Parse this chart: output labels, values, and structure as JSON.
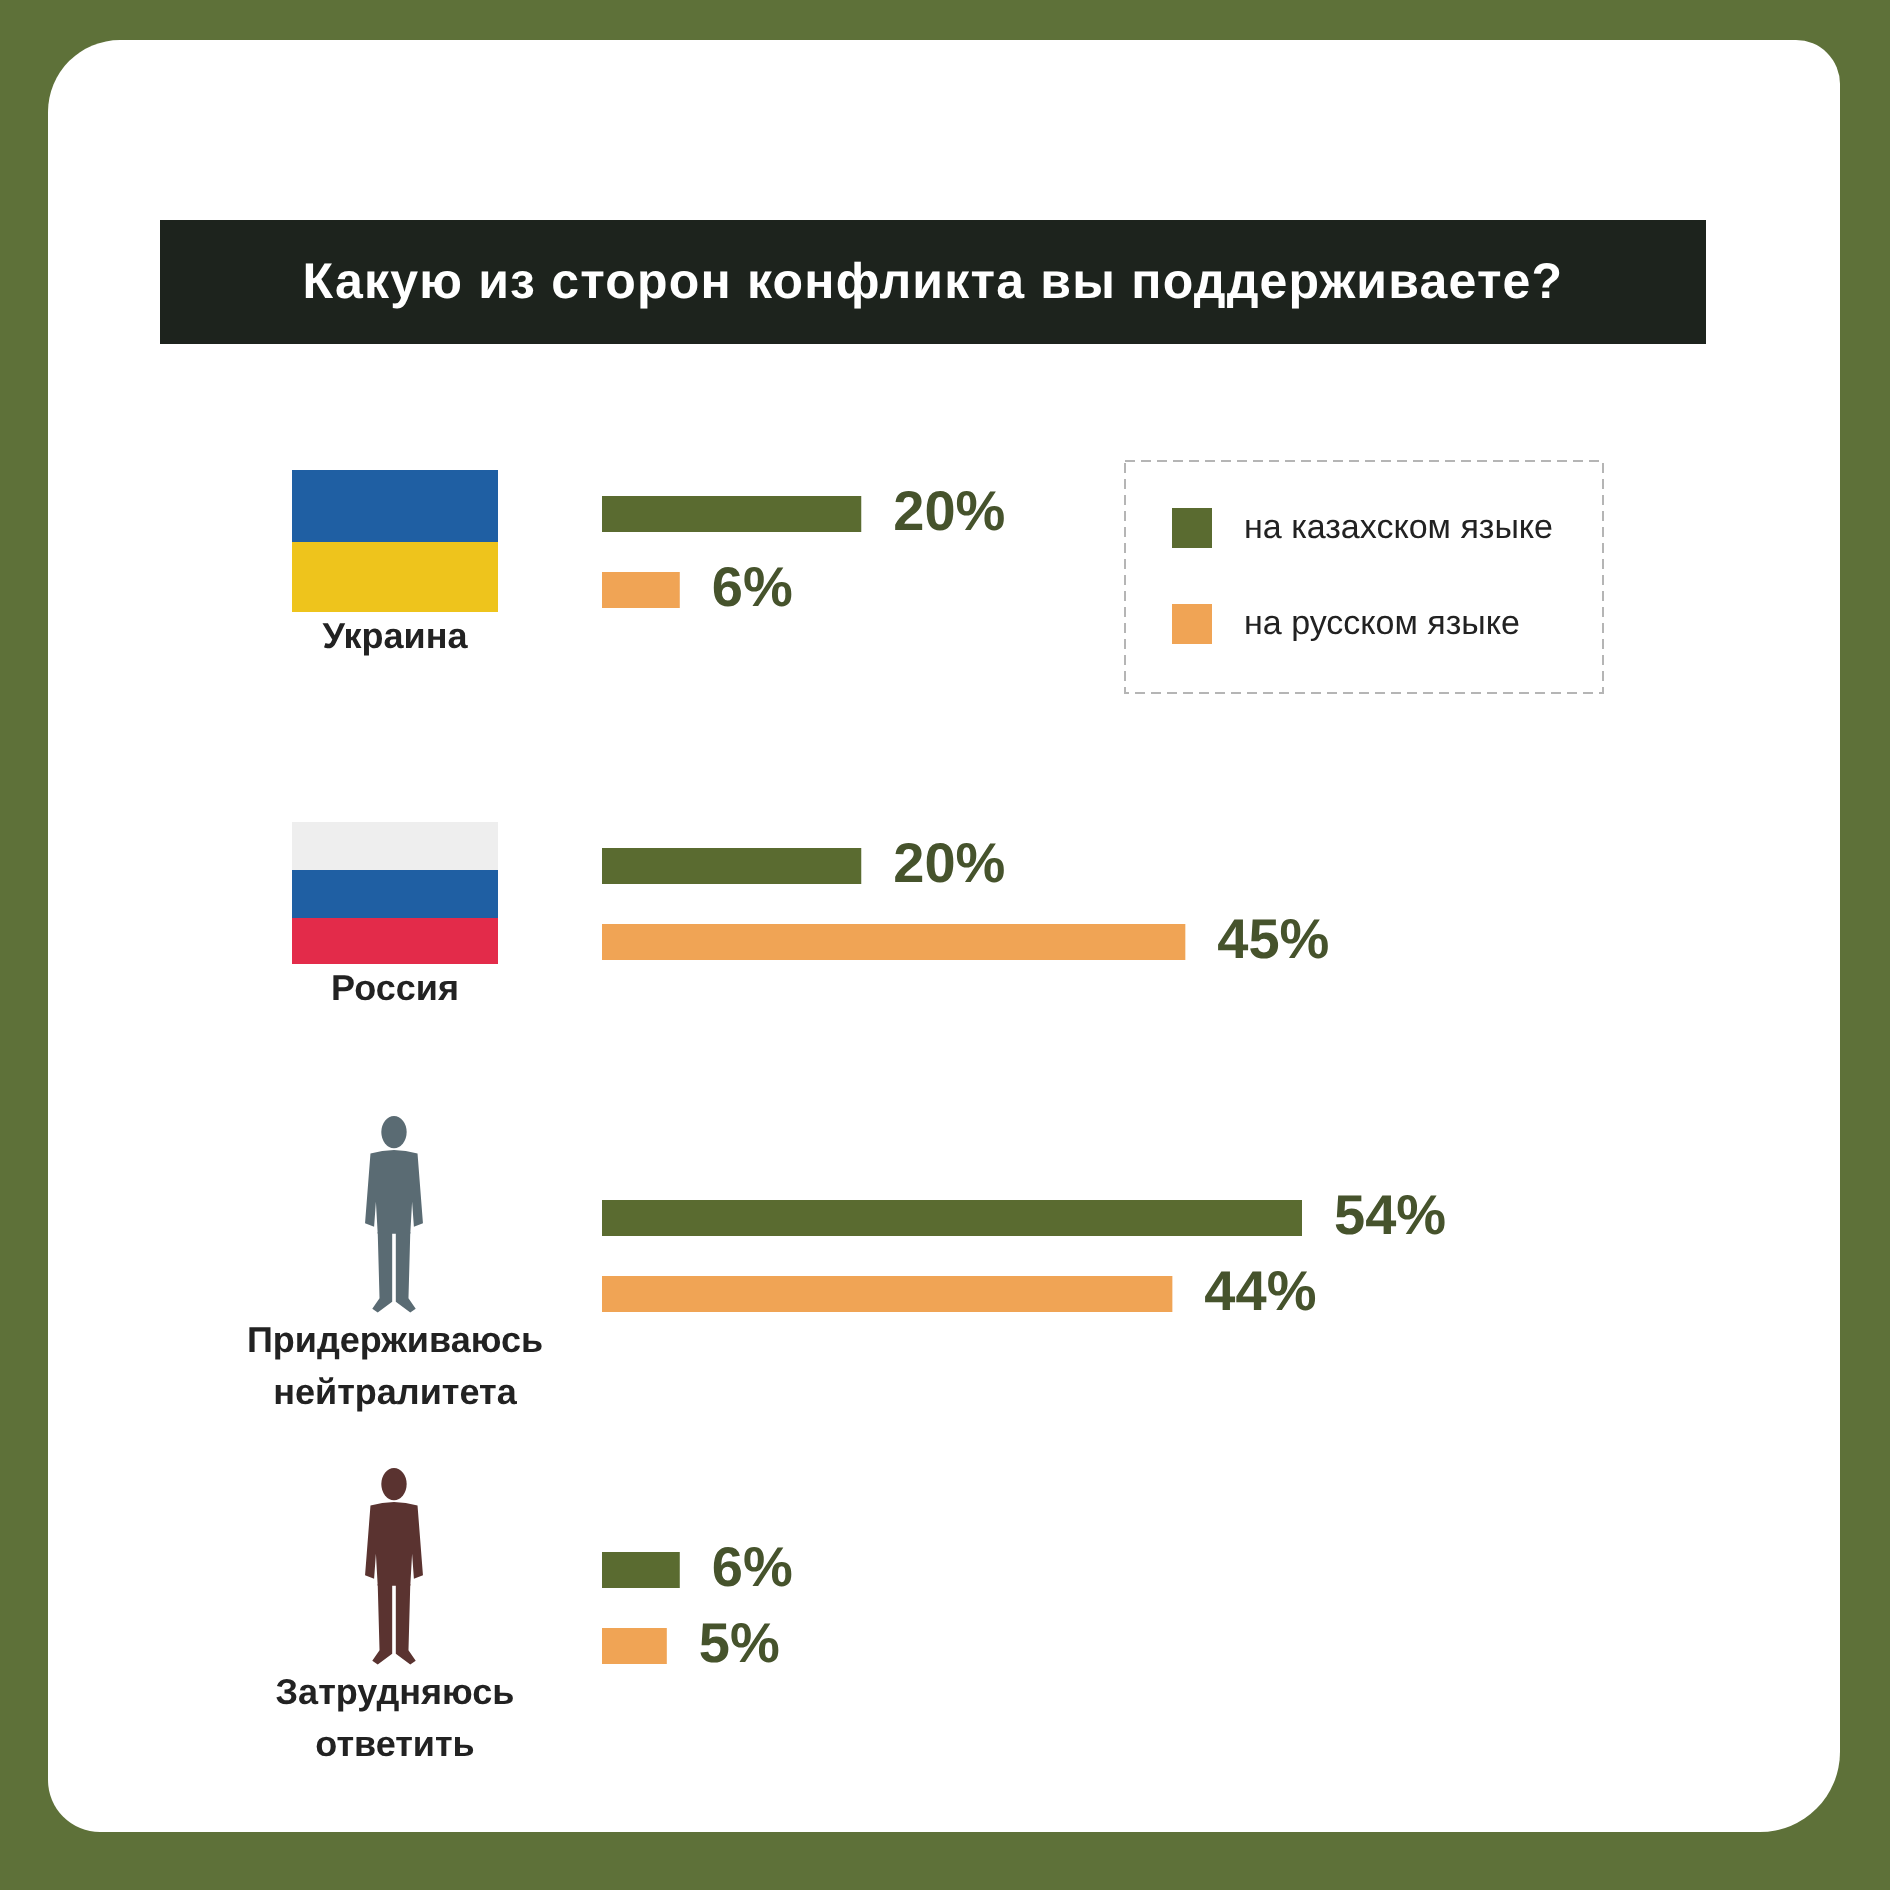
{
  "chart_data": {
    "type": "bar",
    "orientation": "horizontal",
    "title": "Какую из сторон конфликта вы поддерживаете?",
    "categories": [
      "Украина",
      "Россия",
      "Придерживаюсь нейтралитета",
      "Затрудняюсь ответить"
    ],
    "series": [
      {
        "name": "на казахском языке",
        "color": "#5a6b30",
        "values": [
          20,
          20,
          54,
          6
        ],
        "value_labels": [
          "20%",
          "20%",
          "54%",
          "6%"
        ]
      },
      {
        "name": "на русском языке",
        "color": "#f0a455",
        "values": [
          6,
          45,
          44,
          5
        ],
        "value_labels": [
          "6%",
          "45%",
          "44%",
          "5%"
        ]
      }
    ],
    "legend": "top right",
    "tick_labels": "y"
  }
}
